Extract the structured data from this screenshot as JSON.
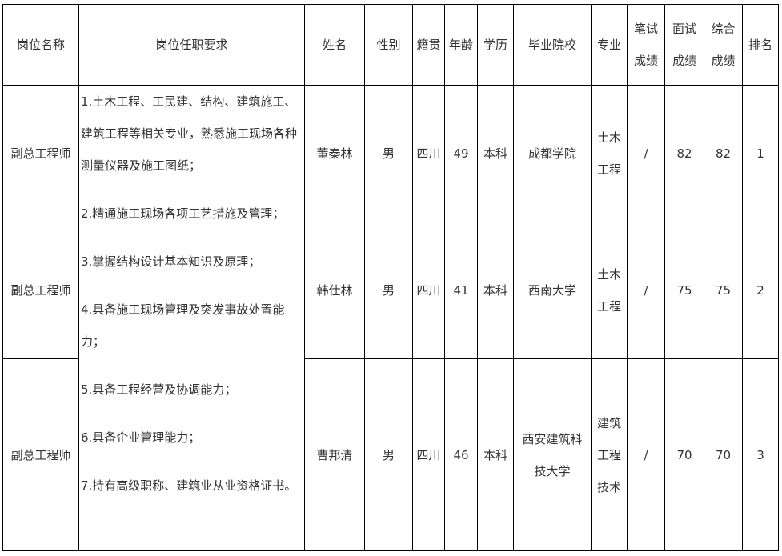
{
  "headers": [
    "岗位名称",
    "岗位任职要求",
    "姓名",
    "性别",
    "籍贯",
    "年龄",
    "学历",
    "毕业院校",
    "专业",
    [
      "笔试",
      "成绩"
    ],
    [
      "面试",
      "成绩"
    ],
    [
      "综合",
      "成绩"
    ],
    "排名"
  ],
  "requirements": [
    "1.土木工程、工民建、结构、建筑施工、建筑工程等相关专业，熟悉施工现场各种测量仪器及施工图纸；",
    "2.精通施工现场各项工艺措施及管理；",
    "3.掌握结构设计基本知识及原理；",
    "4.具备施工现场管理及突发事故处置能力；",
    "5.具备工程经营及协调能力；",
    "6.具备企业管理能力；",
    "7.持有高级职称、建筑业从业资格证书。"
  ],
  "rows": [
    {
      "position": "副总工程师",
      "name": "董秦林",
      "gender": "男",
      "origin": "四川",
      "age": "49",
      "education": "本科",
      "school": [
        "成都学院"
      ],
      "major": [
        "土木",
        "工程"
      ],
      "written": "/",
      "interview": "82",
      "total": "82",
      "rank": "1"
    },
    {
      "position": "副总工程师",
      "name": "韩仕林",
      "gender": "男",
      "origin": "四川",
      "age": "41",
      "education": "本科",
      "school": [
        "西南大学"
      ],
      "major": [
        "土木",
        "工程"
      ],
      "written": "/",
      "interview": "75",
      "total": "75",
      "rank": "2"
    },
    {
      "position": "副总工程师",
      "name": "曹邦清",
      "gender": "男",
      "origin": "四川",
      "age": "46",
      "education": "本科",
      "school": [
        "西安建筑科",
        "技大学"
      ],
      "major": [
        "建筑",
        "工程",
        "技术"
      ],
      "written": "/",
      "interview": "70",
      "total": "70",
      "rank": "3"
    }
  ]
}
